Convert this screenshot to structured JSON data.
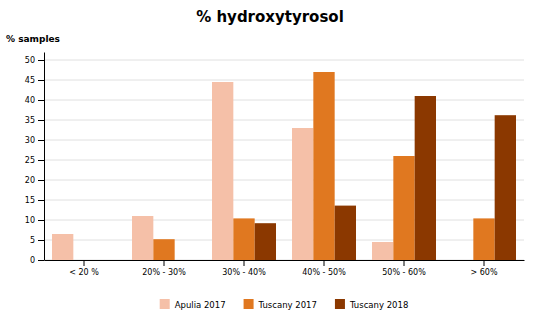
{
  "chart_data": {
    "type": "bar",
    "title": "% hydroxytyrosol",
    "ylabel": "% samples",
    "categories": [
      "< 20 %",
      "20% - 30%",
      "30% - 40%",
      "40% - 50%",
      "50% - 60%",
      "> 60%"
    ],
    "series": [
      {
        "name": "Apulia 2017",
        "color": "#f5c0a8",
        "values": [
          6.5,
          11,
          44.5,
          33,
          4.5,
          0
        ]
      },
      {
        "name": "Tuscany 2017",
        "color": "#e07820",
        "values": [
          0,
          5.2,
          10.4,
          47,
          26,
          10.4
        ]
      },
      {
        "name": "Tuscany 2018",
        "color": "#8b3800",
        "values": [
          0,
          0,
          9.2,
          13.6,
          41,
          36.2
        ]
      }
    ],
    "ylim": [
      0,
      52
    ],
    "yticks": [
      0,
      5,
      10,
      15,
      20,
      25,
      30,
      35,
      40,
      45,
      50
    ],
    "grid": true,
    "legend": "bottom"
  }
}
